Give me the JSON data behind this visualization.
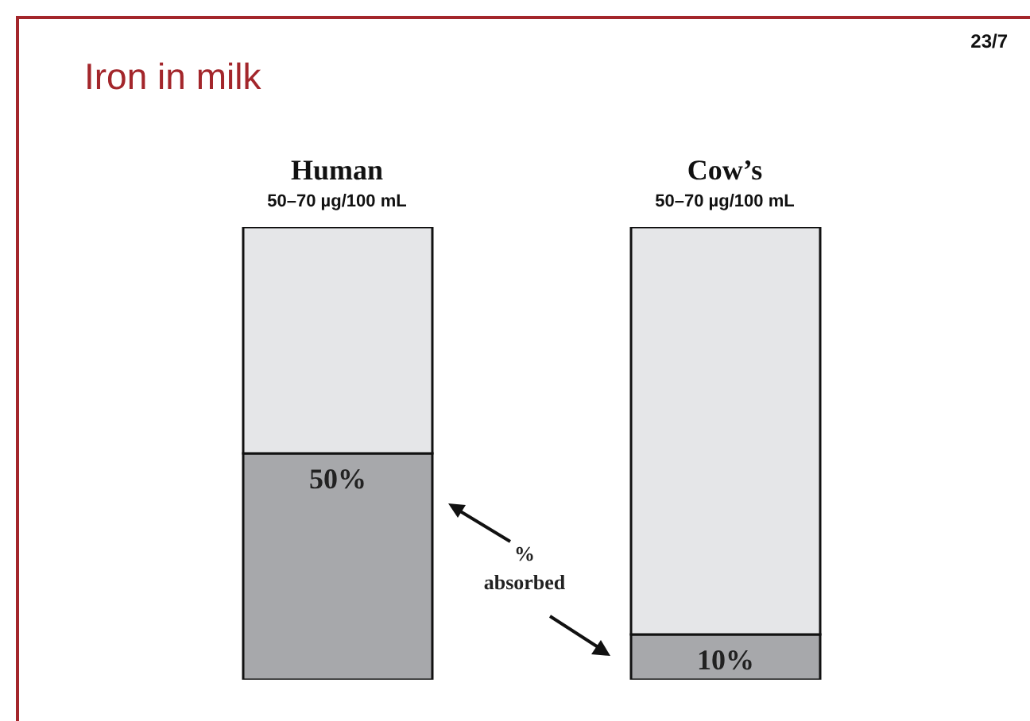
{
  "chart_data": {
    "type": "bar",
    "title": "Iron in milk",
    "categories": [
      "Human",
      "Cow’s"
    ],
    "stacked": true,
    "ylim": [
      0,
      100
    ],
    "series": [
      {
        "color": "#a7a8ab",
        "values": [
          50,
          10
        ],
        "value_labels": [
          "50%",
          "10%"
        ]
      },
      {
        "color": "#e5e6e8",
        "values": [
          50,
          90
        ]
      }
    ],
    "annotations": [
      "23/7",
      "% absorbed",
      "50–70 µg/100 mL",
      "50–70 µg/100 mL"
    ]
  }
}
